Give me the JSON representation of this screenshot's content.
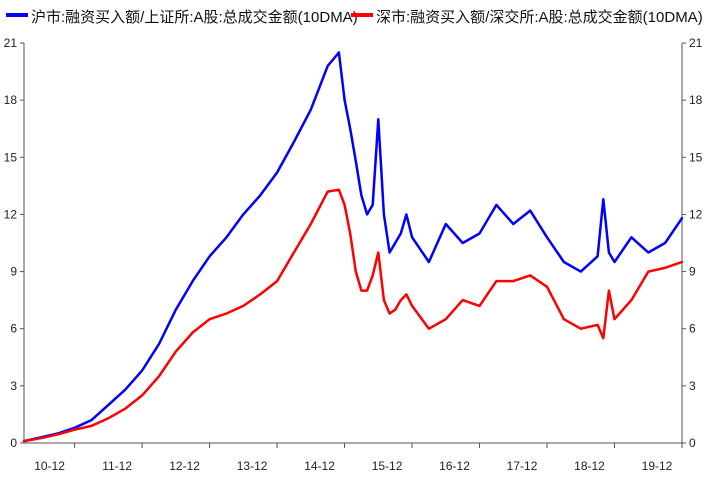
{
  "chart_data": {
    "type": "line",
    "title": "",
    "xlabel": "",
    "ylabel": "",
    "ylim": [
      0,
      21
    ],
    "y_ticks": [
      0,
      3,
      6,
      9,
      12,
      15,
      18,
      21
    ],
    "y_axes": "left-and-right",
    "grid": false,
    "legend_position": "top",
    "x_tick_labels": [
      "10-12",
      "11-12",
      "12-12",
      "13-12",
      "14-12",
      "15-12",
      "16-12",
      "17-12",
      "18-12",
      "19-12"
    ],
    "x_range": [
      "2010-03",
      "2019-12"
    ],
    "x_tick_dates": [
      "2010-12",
      "2011-12",
      "2012-12",
      "2013-12",
      "2014-12",
      "2015-12",
      "2016-12",
      "2017-12",
      "2018-12",
      "2019-12"
    ],
    "series": [
      {
        "name": "沪市:融资买入额/上证所:A股:总成交金额(10DMA)",
        "color": "#0000ff",
        "x": [
          "2010-03",
          "2010-06",
          "2010-09",
          "2010-12",
          "2011-03",
          "2011-06",
          "2011-09",
          "2011-12",
          "2012-03",
          "2012-06",
          "2012-09",
          "2012-12",
          "2013-03",
          "2013-06",
          "2013-09",
          "2013-12",
          "2014-03",
          "2014-06",
          "2014-09",
          "2014-11",
          "2014-12",
          "2015-01",
          "2015-02",
          "2015-03",
          "2015-04",
          "2015-05",
          "2015-06",
          "2015-07",
          "2015-08",
          "2015-09",
          "2015-10",
          "2015-11",
          "2015-12",
          "2016-03",
          "2016-06",
          "2016-09",
          "2016-12",
          "2017-03",
          "2017-06",
          "2017-09",
          "2017-12",
          "2018-03",
          "2018-06",
          "2018-09",
          "2018-10",
          "2018-11",
          "2018-12",
          "2019-03",
          "2019-06",
          "2019-09",
          "2019-12"
        ],
        "values": [
          0.1,
          0.3,
          0.5,
          0.8,
          1.2,
          2.0,
          2.8,
          3.8,
          5.2,
          7.0,
          8.5,
          9.8,
          10.8,
          12.0,
          13.0,
          14.2,
          15.8,
          17.5,
          19.8,
          20.5,
          18.0,
          16.5,
          14.8,
          13.0,
          12.0,
          12.5,
          17.0,
          12.0,
          10.0,
          10.5,
          11.0,
          12.0,
          10.8,
          9.5,
          11.5,
          10.5,
          11.0,
          12.5,
          11.5,
          12.2,
          10.8,
          9.5,
          9.0,
          9.8,
          12.8,
          10.0,
          9.5,
          10.8,
          10.0,
          10.5,
          11.8
        ]
      },
      {
        "name": "深市:融资买入额/深交所:A股:总成交金额(10DMA)",
        "color": "#ff0000",
        "x": [
          "2010-03",
          "2010-06",
          "2010-09",
          "2010-12",
          "2011-03",
          "2011-06",
          "2011-09",
          "2011-12",
          "2012-03",
          "2012-06",
          "2012-09",
          "2012-12",
          "2013-03",
          "2013-06",
          "2013-09",
          "2013-12",
          "2014-03",
          "2014-06",
          "2014-09",
          "2014-11",
          "2014-12",
          "2015-01",
          "2015-02",
          "2015-03",
          "2015-04",
          "2015-05",
          "2015-06",
          "2015-07",
          "2015-08",
          "2015-09",
          "2015-10",
          "2015-11",
          "2015-12",
          "2016-03",
          "2016-06",
          "2016-09",
          "2016-12",
          "2017-03",
          "2017-06",
          "2017-09",
          "2017-12",
          "2018-03",
          "2018-06",
          "2018-09",
          "2018-10",
          "2018-11",
          "2018-12",
          "2019-03",
          "2019-06",
          "2019-09",
          "2019-12"
        ],
        "values": [
          0.1,
          0.25,
          0.45,
          0.7,
          0.9,
          1.3,
          1.8,
          2.5,
          3.5,
          4.8,
          5.8,
          6.5,
          6.8,
          7.2,
          7.8,
          8.5,
          10.0,
          11.5,
          13.2,
          13.3,
          12.5,
          11.0,
          9.0,
          8.0,
          8.0,
          8.8,
          10.0,
          7.5,
          6.8,
          7.0,
          7.5,
          7.8,
          7.2,
          6.0,
          6.5,
          7.5,
          7.2,
          8.5,
          8.5,
          8.8,
          8.2,
          6.5,
          6.0,
          6.2,
          5.5,
          8.0,
          6.5,
          7.5,
          9.0,
          9.2,
          9.5
        ]
      }
    ]
  }
}
